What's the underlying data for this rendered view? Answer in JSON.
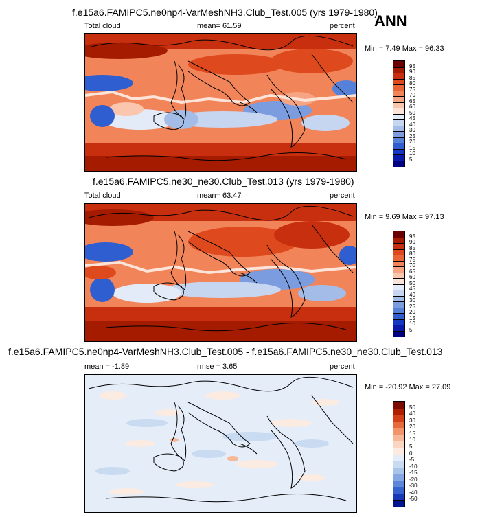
{
  "chart_data": [
    {
      "type": "heatmap",
      "title": "f.e15a6.FAMIPC5.ne0np4-VarMeshNH3.Club_Test.005 (yrs 1979-1980)",
      "left_label": "Total cloud",
      "center_label": "mean=  61.59",
      "right_label": "percent",
      "minmax_label": "Min =   7.49 Max =  96.33",
      "mean": 61.59,
      "min": 7.49,
      "max": 96.33,
      "levels": [
        "95",
        "90",
        "85",
        "80",
        "75",
        "70",
        "65",
        "60",
        "50",
        "45",
        "40",
        "30",
        "25",
        "20",
        "15",
        "10",
        "5"
      ],
      "colors": [
        "#6b0000",
        "#a51b00",
        "#c82f0f",
        "#de4a1e",
        "#ea6535",
        "#f2845a",
        "#f7a483",
        "#fbc6ae",
        "#fde4d8",
        "#e2ebf7",
        "#c6d6f0",
        "#a4bde8",
        "#7b9de0",
        "#5681d8",
        "#2f5ed0",
        "#1338c4",
        "#0a1aa8",
        "#000080"
      ]
    },
    {
      "type": "heatmap",
      "title": "f.e15a6.FAMIPC5.ne30_ne30.Club_Test.013 (yrs 1979-1980)",
      "left_label": "Total cloud",
      "center_label": "mean=  63.47",
      "right_label": "percent",
      "minmax_label": "Min =   9.69 Max =  97.13",
      "mean": 63.47,
      "min": 9.69,
      "max": 97.13,
      "levels": [
        "95",
        "90",
        "85",
        "80",
        "75",
        "70",
        "65",
        "60",
        "50",
        "45",
        "40",
        "30",
        "25",
        "20",
        "15",
        "10",
        "5"
      ],
      "colors": [
        "#6b0000",
        "#a51b00",
        "#c82f0f",
        "#de4a1e",
        "#ea6535",
        "#f2845a",
        "#f7a483",
        "#fbc6ae",
        "#fde4d8",
        "#e2ebf7",
        "#c6d6f0",
        "#a4bde8",
        "#7b9de0",
        "#5681d8",
        "#2f5ed0",
        "#1338c4",
        "#0a1aa8",
        "#000080"
      ]
    },
    {
      "type": "heatmap",
      "title": "f.e15a6.FAMIPC5.ne0np4-VarMeshNH3.Club_Test.005 - f.e15a6.FAMIPC5.ne30_ne30.Club_Test.013",
      "left_label": "mean = -1.89",
      "center_label": "rmse =   3.65",
      "right_label": "percent",
      "minmax_label": "Min = -20.92 Max =  27.09",
      "mean": -1.89,
      "rmse": 3.65,
      "min": -20.92,
      "max": 27.09,
      "levels": [
        "50",
        "40",
        "30",
        "20",
        "15",
        "10",
        "5",
        "0",
        "-5",
        "-10",
        "-15",
        "-20",
        "-30",
        "-40",
        "-50"
      ],
      "colors": [
        "#7a0c00",
        "#b01e00",
        "#d2401a",
        "#e66a3c",
        "#f0946a",
        "#f6b897",
        "#fad6c2",
        "#fbebe1",
        "#e4edf8",
        "#c9dbf1",
        "#a9c4ea",
        "#86a8e2",
        "#5d86d8",
        "#3562cc",
        "#1739b8",
        "#001690"
      ]
    }
  ],
  "season_label": "ANN"
}
